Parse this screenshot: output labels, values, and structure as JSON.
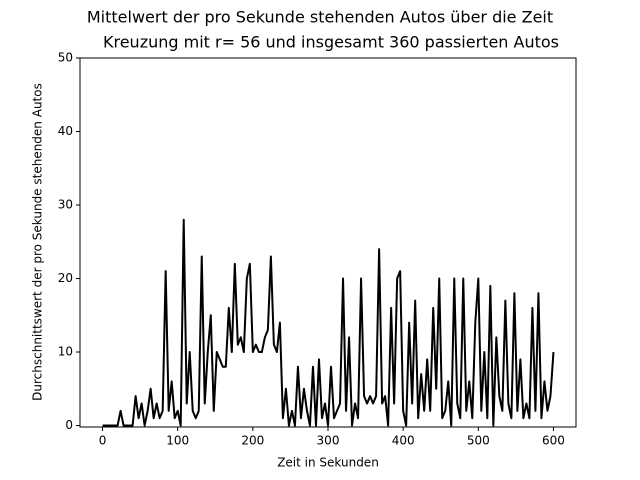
{
  "chart_data": {
    "type": "line",
    "title": "Mittelwert der pro Sekunde stehenden Autos über die Zeit",
    "subtitle": "Kreuzung mit r= 56 und insgesamt 360 passierten Autos",
    "x_label": "Zeit in Sekunden",
    "y_label": "Durchschnittswert der pro Sekunde stehenden Autos",
    "x": [
      0,
      4,
      8,
      12,
      16,
      20,
      24,
      28,
      32,
      36,
      40,
      44,
      48,
      52,
      56,
      60,
      64,
      68,
      72,
      76,
      80,
      84,
      88,
      92,
      96,
      100,
      104,
      108,
      112,
      116,
      120,
      124,
      128,
      132,
      136,
      140,
      144,
      148,
      152,
      156,
      160,
      164,
      168,
      172,
      176,
      180,
      184,
      188,
      192,
      196,
      200,
      204,
      208,
      212,
      216,
      220,
      224,
      228,
      232,
      236,
      240,
      244,
      248,
      252,
      256,
      260,
      264,
      268,
      272,
      276,
      280,
      284,
      288,
      292,
      296,
      300,
      304,
      308,
      312,
      316,
      320,
      324,
      328,
      332,
      336,
      340,
      344,
      348,
      352,
      356,
      360,
      364,
      368,
      372,
      376,
      380,
      384,
      388,
      392,
      396,
      400,
      404,
      408,
      412,
      416,
      420,
      424,
      428,
      432,
      436,
      440,
      444,
      448,
      452,
      456,
      460,
      464,
      468,
      472,
      476,
      480,
      484,
      488,
      492,
      496,
      500,
      504,
      508,
      512,
      516,
      520,
      524,
      528,
      532,
      536,
      540,
      544,
      548,
      552,
      556,
      560,
      564,
      568,
      572,
      576,
      580,
      584,
      588,
      592,
      596,
      600
    ],
    "series": [
      {
        "color": "#000000",
        "values": [
          0,
          0,
          0,
          0,
          0,
          0,
          2,
          0,
          0,
          0,
          0,
          4,
          1,
          3,
          0,
          2,
          5,
          1,
          3,
          1,
          2,
          21,
          2,
          6,
          1,
          2,
          0,
          28,
          3,
          10,
          2,
          1,
          2,
          23,
          3,
          10,
          15,
          2,
          10,
          9,
          8,
          8,
          16,
          10,
          22,
          11,
          12,
          10,
          20,
          22,
          10,
          11,
          10,
          10,
          12,
          13,
          23,
          11,
          10,
          14,
          1,
          5,
          0,
          2,
          0,
          8,
          1,
          5,
          2,
          0,
          8,
          0,
          9,
          1,
          3,
          0,
          8,
          1,
          2,
          3,
          20,
          2,
          12,
          0,
          3,
          1,
          20,
          4,
          3,
          4,
          3,
          4,
          24,
          3,
          4,
          0,
          16,
          3,
          20,
          21,
          2,
          0,
          14,
          3,
          17,
          1,
          7,
          2,
          9,
          2,
          16,
          5,
          20,
          1,
          2,
          6,
          0,
          20,
          3,
          1,
          20,
          2,
          6,
          1,
          14,
          20,
          2,
          10,
          1,
          19,
          0,
          12,
          4,
          2,
          17,
          3,
          1,
          18,
          2,
          9,
          1,
          3,
          1,
          16,
          2,
          18,
          1,
          6,
          2,
          4,
          10
        ]
      }
    ],
    "xlim": [
      -30,
      630
    ],
    "ylim": [
      -0.2,
      50
    ],
    "xticks": [
      0,
      100,
      200,
      300,
      400,
      500,
      600
    ],
    "yticks": [
      0,
      10,
      20,
      30,
      40,
      50
    ]
  }
}
